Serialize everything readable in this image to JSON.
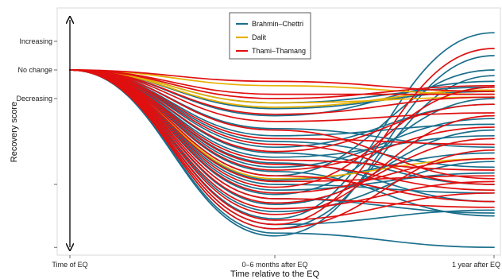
{
  "chart_data": {
    "type": "line",
    "title": "",
    "xlabel": "Time relative to the EQ",
    "ylabel": "Recovery score",
    "x_categories": [
      "Time of EQ",
      "0–6 months after EQ",
      "1 year after EQ"
    ],
    "y_tick_labels": [
      {
        "label": "Increasing",
        "value": 1
      },
      {
        "label": "No change",
        "value": 0
      },
      {
        "label": "Decreasing",
        "value": -1
      },
      {
        "label": "",
        "value": -4
      },
      {
        "label": "",
        "value": -6.2
      }
    ],
    "ylim": [
      -6.6,
      2.1
    ],
    "grid": false,
    "legend_position": "top-center",
    "colors": {
      "Brahmin–Chettri": "#1a6f8c",
      "Dalit": "#e6b000",
      "Thami–Thamang": "#e01010"
    },
    "series": [
      {
        "name": "Brahmin–Chettri",
        "color": "#1a6f8c",
        "lines": [
          [
            0,
            -1.15,
            -0.6
          ],
          [
            0,
            -1.35,
            -0.75
          ],
          [
            0,
            -1.6,
            -0.4
          ],
          [
            0,
            -2.05,
            -2.7
          ],
          [
            0,
            -2.3,
            -1.9
          ],
          [
            0,
            -2.5,
            -3.4
          ],
          [
            0,
            -2.7,
            -1.2
          ],
          [
            0,
            -2.9,
            -4.0
          ],
          [
            0,
            -3.05,
            -2.3
          ],
          [
            0,
            -3.25,
            -4.6
          ],
          [
            0,
            -3.4,
            -1.7
          ],
          [
            0,
            -3.55,
            -5.1
          ],
          [
            0,
            -3.7,
            0.0
          ],
          [
            0,
            -3.85,
            -2.9
          ],
          [
            0,
            -4.0,
            -4.3
          ],
          [
            0,
            -4.2,
            -3.6
          ],
          [
            0,
            -4.35,
            -1.0
          ],
          [
            0,
            -4.5,
            -5.0
          ],
          [
            0,
            -4.7,
            -2.1
          ],
          [
            0,
            -4.95,
            -3.2
          ],
          [
            0,
            -5.2,
            1.3
          ],
          [
            0,
            -5.4,
            -4.9
          ],
          [
            0,
            -5.55,
            -0.2
          ],
          [
            0,
            -5.7,
            -6.2
          ],
          [
            0,
            -5.8,
            0.5
          ]
        ]
      },
      {
        "name": "Dalit",
        "color": "#e6b000",
        "lines": [
          [
            0,
            -0.55,
            -0.85
          ],
          [
            0,
            -1.15,
            -0.95
          ],
          [
            0,
            -1.3,
            -0.7
          ],
          [
            0,
            -3.8,
            -3.1
          ]
        ]
      },
      {
        "name": "Thami–Thamang",
        "color": "#e01010",
        "lines": [
          [
            0,
            -0.4,
            -0.75
          ],
          [
            0,
            -0.85,
            -0.85
          ],
          [
            0,
            -1.0,
            -0.55
          ],
          [
            0,
            -1.55,
            -0.95
          ],
          [
            0,
            -1.8,
            -1.5
          ],
          [
            0,
            -2.1,
            -3.8
          ],
          [
            0,
            -2.4,
            -2.6
          ],
          [
            0,
            -2.6,
            -4.0
          ],
          [
            0,
            -2.85,
            -1.2
          ],
          [
            0,
            -3.15,
            -3.5
          ],
          [
            0,
            -3.3,
            -4.2
          ],
          [
            0,
            -3.5,
            -2.0
          ],
          [
            0,
            -3.7,
            -4.6
          ],
          [
            0,
            -3.9,
            -3.7
          ],
          [
            0,
            -4.1,
            -0.6
          ],
          [
            0,
            -4.3,
            -3.1
          ],
          [
            0,
            -4.5,
            -4.8
          ],
          [
            0,
            -4.65,
            -2.4
          ],
          [
            0,
            -4.85,
            -3.9
          ],
          [
            0,
            -5.05,
            -1.6
          ],
          [
            0,
            -5.25,
            -4.3
          ],
          [
            0,
            -5.4,
            0.75
          ],
          [
            0,
            -5.55,
            -2.8
          ]
        ]
      }
    ]
  }
}
